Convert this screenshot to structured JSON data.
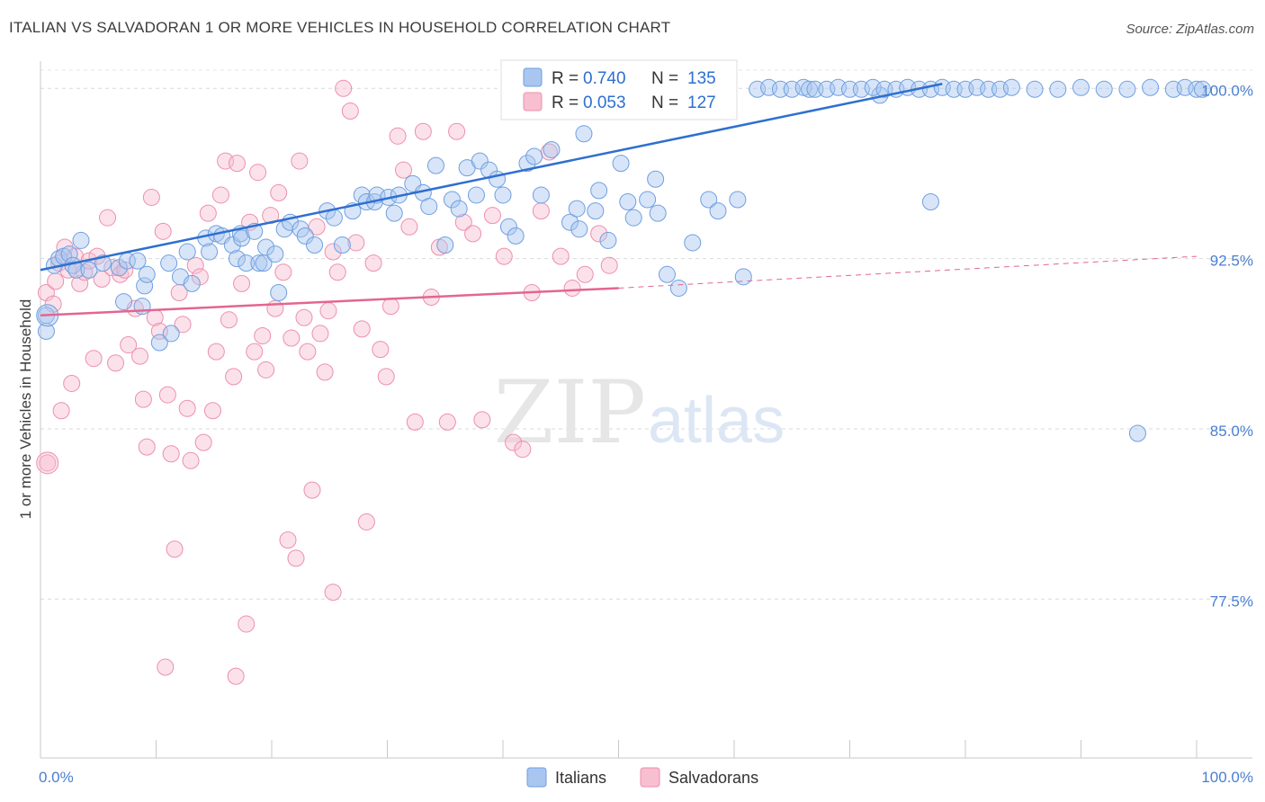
{
  "header": {
    "title": "ITALIAN VS SALVADORAN 1 OR MORE VEHICLES IN HOUSEHOLD CORRELATION CHART",
    "source": "Source: ZipAtlas.com"
  },
  "watermark": {
    "part1": "ZIP",
    "part2": "atlas"
  },
  "colors": {
    "italians": "#6f9fe0",
    "italians_fill": "#a9c6f0",
    "italians_line": "#2e6fcf",
    "salvadorans": "#ee8fad",
    "salvadorans_fill": "#f7bfd0",
    "salvadorans_line": "#e3668f",
    "tick_label": "#4a7fd0",
    "grid": "#d9d9d9"
  },
  "stats": {
    "italians": {
      "r_label": "R = ",
      "r_value": "0.740",
      "n_label": "N = ",
      "n_value": "135"
    },
    "salvadorans": {
      "r_label": "R = ",
      "r_value": "0.053",
      "n_label": "N = ",
      "n_value": "127"
    }
  },
  "chart_data": {
    "type": "scatter",
    "title": "ITALIAN VS SALVADORAN 1 OR MORE VEHICLES IN HOUSEHOLD CORRELATION CHART",
    "xlabel": "",
    "ylabel": "1 or more Vehicles in Household",
    "xlim": [
      0,
      100
    ],
    "ylim": [
      70.5,
      101.2
    ],
    "x_tick_labels": [
      "0.0%",
      "100.0%"
    ],
    "y_ticks": [
      77.5,
      85.0,
      92.5,
      100.0
    ],
    "y_tick_labels": [
      "77.5%",
      "85.0%",
      "92.5%",
      "100.0%"
    ],
    "grid": "horizontal dashed",
    "legend": "top-center and bottom-center",
    "series": [
      {
        "name": "Italians",
        "trend": {
          "x": [
            0,
            78
          ],
          "y": [
            92.0,
            100.2
          ]
        },
        "points": [
          [
            0.5,
            90.0
          ],
          [
            0.5,
            89.3
          ],
          [
            1.2,
            92.2
          ],
          [
            1.6,
            92.5
          ],
          [
            2.0,
            92.6
          ],
          [
            2.5,
            92.7
          ],
          [
            2.8,
            92.2
          ],
          [
            3.1,
            92.0
          ],
          [
            3.5,
            93.3
          ],
          [
            4.2,
            92.0
          ],
          [
            5.4,
            92.3
          ],
          [
            6.8,
            92.1
          ],
          [
            7.2,
            90.6
          ],
          [
            7.5,
            92.4
          ],
          [
            8.4,
            92.4
          ],
          [
            8.8,
            90.4
          ],
          [
            9.0,
            91.3
          ],
          [
            9.2,
            91.8
          ],
          [
            10.3,
            88.8
          ],
          [
            11.1,
            92.3
          ],
          [
            11.3,
            89.2
          ],
          [
            12.1,
            91.7
          ],
          [
            12.7,
            92.8
          ],
          [
            13.1,
            91.4
          ],
          [
            14.3,
            93.4
          ],
          [
            14.6,
            92.8
          ],
          [
            15.2,
            93.6
          ],
          [
            15.7,
            93.5
          ],
          [
            16.6,
            93.1
          ],
          [
            17.0,
            92.5
          ],
          [
            17.3,
            93.6
          ],
          [
            17.8,
            92.3
          ],
          [
            17.4,
            93.4
          ],
          [
            18.5,
            93.7
          ],
          [
            18.9,
            92.3
          ],
          [
            19.3,
            92.3
          ],
          [
            19.5,
            93.0
          ],
          [
            20.3,
            92.7
          ],
          [
            20.6,
            91.0
          ],
          [
            21.1,
            93.8
          ],
          [
            21.6,
            94.1
          ],
          [
            22.5,
            93.8
          ],
          [
            22.9,
            93.5
          ],
          [
            23.7,
            93.1
          ],
          [
            24.8,
            94.6
          ],
          [
            25.4,
            94.3
          ],
          [
            26.1,
            93.1
          ],
          [
            27.0,
            94.6
          ],
          [
            27.8,
            95.3
          ],
          [
            28.2,
            95.0
          ],
          [
            28.9,
            95.0
          ],
          [
            29.1,
            95.3
          ],
          [
            30.1,
            95.2
          ],
          [
            30.6,
            94.5
          ],
          [
            31.0,
            95.3
          ],
          [
            32.2,
            95.8
          ],
          [
            33.1,
            95.4
          ],
          [
            33.6,
            94.8
          ],
          [
            34.2,
            96.6
          ],
          [
            35.0,
            93.1
          ],
          [
            35.6,
            95.1
          ],
          [
            36.2,
            94.7
          ],
          [
            36.9,
            96.5
          ],
          [
            37.7,
            95.3
          ],
          [
            38.0,
            96.8
          ],
          [
            38.8,
            96.4
          ],
          [
            39.5,
            96.0
          ],
          [
            40.0,
            95.3
          ],
          [
            40.5,
            93.9
          ],
          [
            41.1,
            93.5
          ],
          [
            42.1,
            96.7
          ],
          [
            42.7,
            97.0
          ],
          [
            43.3,
            95.3
          ],
          [
            44.2,
            97.3
          ],
          [
            44.6,
            99.0
          ],
          [
            45.8,
            94.1
          ],
          [
            46.4,
            94.7
          ],
          [
            46.6,
            93.8
          ],
          [
            47.0,
            98.0
          ],
          [
            48.0,
            94.6
          ],
          [
            48.3,
            95.5
          ],
          [
            49.1,
            93.3
          ],
          [
            50.2,
            96.7
          ],
          [
            50.8,
            95.0
          ],
          [
            51.3,
            94.3
          ],
          [
            52.5,
            95.1
          ],
          [
            53.2,
            96.0
          ],
          [
            53.4,
            94.5
          ],
          [
            54.2,
            91.8
          ],
          [
            55.2,
            91.2
          ],
          [
            56.4,
            93.2
          ],
          [
            57.8,
            95.1
          ],
          [
            58.6,
            94.6
          ],
          [
            60.3,
            95.1
          ],
          [
            60.8,
            91.7
          ],
          [
            72.6,
            99.7
          ],
          [
            77.0,
            95.0
          ],
          [
            94.9,
            84.8
          ]
        ],
        "top_row_x": [
          41,
          45,
          49,
          51,
          53,
          55,
          57,
          59,
          62,
          63,
          64,
          65,
          66,
          66.5,
          67,
          68,
          69,
          70,
          71,
          72,
          73,
          74,
          75,
          76,
          77,
          78,
          79,
          80,
          81,
          82,
          83,
          84,
          86,
          88,
          90,
          92,
          94,
          96,
          98,
          99,
          100,
          100.5
        ]
      },
      {
        "name": "Salvadorans",
        "trend": {
          "x": [
            0,
            50
          ],
          "y": [
            90.0,
            91.2
          ]
        },
        "trend_extension": {
          "x": [
            50,
            100
          ],
          "y": [
            91.2,
            92.6
          ]
        },
        "points": [
          [
            0.5,
            91.0
          ],
          [
            0.6,
            83.5
          ],
          [
            1.1,
            90.5
          ],
          [
            1.3,
            91.5
          ],
          [
            1.6,
            92.3
          ],
          [
            1.8,
            85.8
          ],
          [
            2.1,
            93.0
          ],
          [
            2.4,
            92.0
          ],
          [
            2.7,
            87.0
          ],
          [
            3.0,
            92.6
          ],
          [
            3.4,
            91.4
          ],
          [
            3.8,
            91.9
          ],
          [
            4.2,
            92.4
          ],
          [
            4.6,
            88.1
          ],
          [
            4.9,
            92.6
          ],
          [
            5.3,
            91.6
          ],
          [
            5.8,
            94.3
          ],
          [
            6.2,
            92.1
          ],
          [
            6.5,
            87.9
          ],
          [
            6.9,
            91.8
          ],
          [
            7.3,
            92.0
          ],
          [
            7.6,
            88.7
          ],
          [
            8.2,
            90.3
          ],
          [
            8.6,
            88.2
          ],
          [
            8.9,
            86.3
          ],
          [
            9.2,
            84.2
          ],
          [
            9.6,
            95.2
          ],
          [
            9.9,
            89.9
          ],
          [
            10.3,
            89.3
          ],
          [
            10.6,
            93.7
          ],
          [
            11.0,
            86.5
          ],
          [
            11.3,
            83.9
          ],
          [
            11.6,
            79.7
          ],
          [
            12.0,
            91.0
          ],
          [
            12.3,
            89.6
          ],
          [
            12.7,
            85.9
          ],
          [
            13.0,
            83.6
          ],
          [
            13.4,
            92.2
          ],
          [
            13.8,
            91.7
          ],
          [
            14.1,
            84.4
          ],
          [
            14.5,
            94.5
          ],
          [
            14.9,
            85.8
          ],
          [
            15.2,
            88.4
          ],
          [
            15.6,
            95.3
          ],
          [
            16.0,
            96.8
          ],
          [
            16.3,
            89.8
          ],
          [
            16.7,
            87.3
          ],
          [
            17.0,
            96.7
          ],
          [
            17.4,
            91.4
          ],
          [
            17.8,
            76.4
          ],
          [
            18.1,
            94.1
          ],
          [
            18.5,
            88.4
          ],
          [
            18.8,
            96.3
          ],
          [
            19.2,
            89.1
          ],
          [
            19.5,
            87.6
          ],
          [
            19.9,
            94.4
          ],
          [
            20.3,
            90.3
          ],
          [
            20.6,
            95.4
          ],
          [
            21.0,
            91.9
          ],
          [
            21.4,
            80.1
          ],
          [
            21.7,
            89.0
          ],
          [
            22.1,
            79.3
          ],
          [
            22.4,
            96.8
          ],
          [
            22.8,
            89.9
          ],
          [
            23.1,
            88.4
          ],
          [
            23.5,
            82.3
          ],
          [
            23.9,
            93.9
          ],
          [
            24.2,
            89.2
          ],
          [
            24.6,
            87.5
          ],
          [
            24.9,
            90.2
          ],
          [
            25.3,
            92.8
          ],
          [
            25.7,
            91.9
          ],
          [
            26.2,
            100.0
          ],
          [
            26.8,
            99.0
          ],
          [
            27.3,
            93.2
          ],
          [
            27.8,
            89.4
          ],
          [
            28.2,
            80.9
          ],
          [
            28.8,
            92.3
          ],
          [
            29.4,
            88.5
          ],
          [
            29.9,
            87.3
          ],
          [
            30.3,
            90.4
          ],
          [
            30.9,
            97.9
          ],
          [
            31.4,
            96.4
          ],
          [
            31.9,
            93.9
          ],
          [
            32.4,
            85.3
          ],
          [
            33.1,
            98.1
          ],
          [
            33.8,
            90.8
          ],
          [
            34.5,
            93.0
          ],
          [
            35.2,
            85.3
          ],
          [
            36.0,
            98.1
          ],
          [
            36.6,
            94.1
          ],
          [
            37.4,
            93.6
          ],
          [
            38.2,
            85.4
          ],
          [
            39.1,
            94.4
          ],
          [
            40.1,
            92.6
          ],
          [
            40.9,
            84.4
          ],
          [
            41.7,
            84.1
          ],
          [
            42.5,
            91.0
          ],
          [
            43.3,
            94.6
          ],
          [
            44.0,
            97.2
          ],
          [
            45.0,
            92.6
          ],
          [
            46.0,
            91.2
          ],
          [
            47.1,
            91.8
          ],
          [
            48.3,
            93.6
          ],
          [
            49.2,
            92.2
          ],
          [
            10.8,
            74.5
          ],
          [
            16.9,
            74.1
          ],
          [
            25.3,
            77.8
          ]
        ]
      }
    ]
  },
  "legend": {
    "italians_label": "Italians",
    "salvadorans_label": "Salvadorans"
  }
}
